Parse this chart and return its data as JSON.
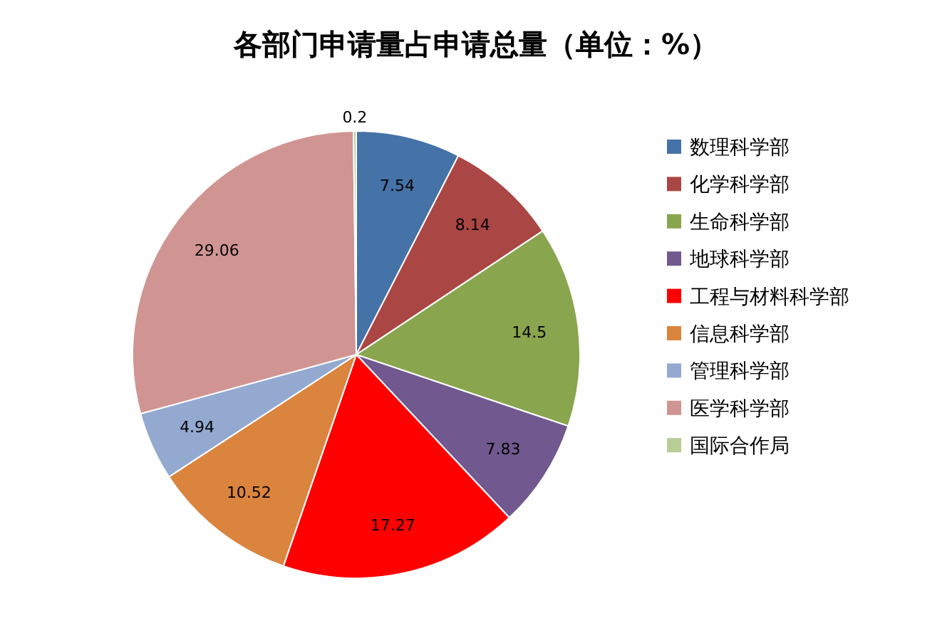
{
  "chart_data": {
    "type": "pie",
    "title": "各部门申请量占申请总量（单位：%）",
    "categories": [
      "数理科学部",
      "化学科学部",
      "生命科学部",
      "地球科学部",
      "工程与材料科学部",
      "信息科学部",
      "管理科学部",
      "医学科学部",
      "国际合作局"
    ],
    "values": [
      7.54,
      8.14,
      14.5,
      7.83,
      17.27,
      10.52,
      4.94,
      29.06,
      0.2
    ],
    "colors": [
      "#4572a7",
      "#aa4643",
      "#89a54e",
      "#71588f",
      "#ff0000",
      "#db843d",
      "#93a9cf",
      "#d09493",
      "#b9cd96"
    ],
    "data_labels": true,
    "legend": "right"
  }
}
